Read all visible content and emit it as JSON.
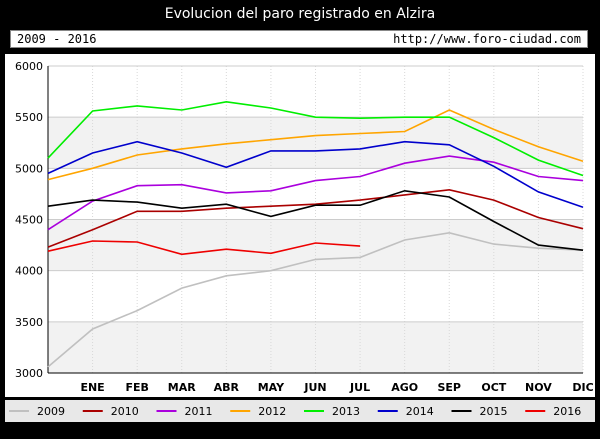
{
  "header": {
    "title": "Evolucion del paro registrado en Alzira",
    "years_range": "2009 - 2016",
    "site_url": "http://www.foro-ciudad.com"
  },
  "chart_data": {
    "type": "line",
    "title": "Evolucion del paro registrado en Alzira",
    "xlabel": "",
    "ylabel": "",
    "categories": [
      "",
      "ENE",
      "FEB",
      "MAR",
      "ABR",
      "MAY",
      "JUN",
      "JUL",
      "AGO",
      "SEP",
      "OCT",
      "NOV",
      "DIC"
    ],
    "x_ticks": [
      "ENE",
      "FEB",
      "MAR",
      "ABR",
      "MAY",
      "JUN",
      "JUL",
      "AGO",
      "SEP",
      "OCT",
      "NOV",
      "DIC"
    ],
    "ylim": [
      3000,
      6000
    ],
    "y_ticks": [
      3000,
      3500,
      4000,
      4500,
      5000,
      5500,
      6000
    ],
    "grid": true,
    "legend_position": "bottom",
    "series": [
      {
        "name": "2009",
        "color": "#c0c0c0",
        "values": [
          3060,
          3430,
          3610,
          3830,
          3950,
          4000,
          4110,
          4130,
          4300,
          4370,
          4260,
          4220,
          4200
        ]
      },
      {
        "name": "2010",
        "color": "#aa0000",
        "values": [
          4230,
          4400,
          4580,
          4580,
          4610,
          4630,
          4650,
          4690,
          4740,
          4790,
          4690,
          4520,
          4410
        ]
      },
      {
        "name": "2011",
        "color": "#aa00dd",
        "values": [
          4400,
          4680,
          4830,
          4840,
          4760,
          4780,
          4880,
          4920,
          5050,
          5120,
          5060,
          4920,
          4880
        ]
      },
      {
        "name": "2012",
        "color": "#ffa500",
        "values": [
          4890,
          5000,
          5130,
          5190,
          5240,
          5280,
          5320,
          5340,
          5360,
          5570,
          5380,
          5210,
          5070
        ]
      },
      {
        "name": "2013",
        "color": "#00ee00",
        "values": [
          5100,
          5560,
          5610,
          5570,
          5650,
          5590,
          5500,
          5490,
          5500,
          5500,
          5300,
          5080,
          4930
        ]
      },
      {
        "name": "2014",
        "color": "#0000cc",
        "values": [
          4950,
          5150,
          5260,
          5150,
          5010,
          5170,
          5170,
          5190,
          5260,
          5230,
          5020,
          4770,
          4620
        ]
      },
      {
        "name": "2015",
        "color": "#000000",
        "values": [
          4630,
          4690,
          4670,
          4610,
          4650,
          4530,
          4640,
          4640,
          4780,
          4720,
          4480,
          4250,
          4200
        ]
      },
      {
        "name": "2016",
        "color": "#ee0000",
        "values": [
          4190,
          4290,
          4280,
          4160,
          4210,
          4170,
          4270,
          4240,
          null,
          null,
          null,
          null,
          null
        ]
      }
    ]
  }
}
